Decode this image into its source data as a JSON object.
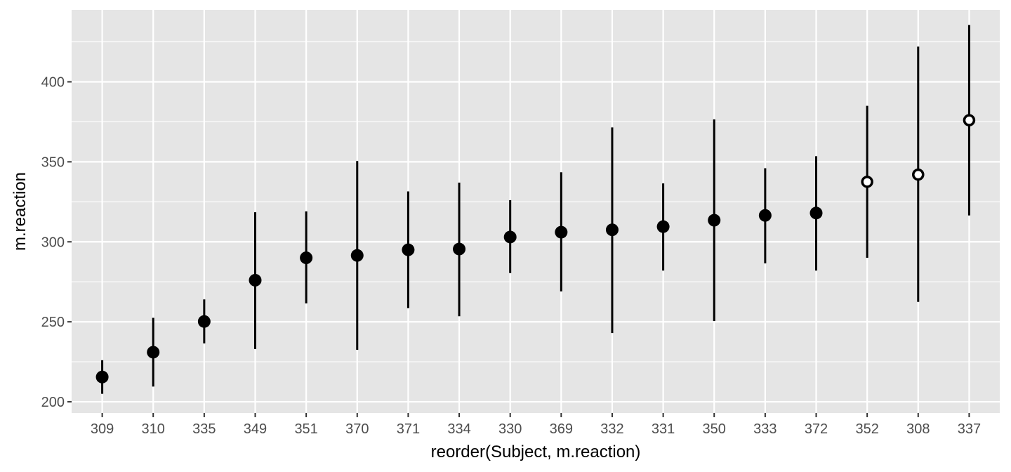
{
  "chart_data": {
    "type": "scatter",
    "geometry": "pointrange",
    "xlabel": "reorder(Subject, m.reaction)",
    "ylabel": "m.reaction",
    "ylim": [
      193,
      445
    ],
    "y_ticks": [
      200,
      250,
      300,
      350,
      400
    ],
    "grid": true,
    "categories": [
      "309",
      "310",
      "335",
      "349",
      "351",
      "370",
      "371",
      "334",
      "330",
      "369",
      "332",
      "331",
      "350",
      "333",
      "372",
      "352",
      "308",
      "337"
    ],
    "points": [
      {
        "subject": "309",
        "mean": 215.5,
        "low": 205,
        "high": 226,
        "hollow": false
      },
      {
        "subject": "310",
        "mean": 231,
        "low": 209.5,
        "high": 252.5,
        "hollow": false
      },
      {
        "subject": "335",
        "mean": 250.2,
        "low": 236.5,
        "high": 264,
        "hollow": false
      },
      {
        "subject": "349",
        "mean": 276,
        "low": 233,
        "high": 318.5,
        "hollow": false
      },
      {
        "subject": "351",
        "mean": 290,
        "low": 261.5,
        "high": 319,
        "hollow": false
      },
      {
        "subject": "370",
        "mean": 291.5,
        "low": 232.5,
        "high": 350.5,
        "hollow": false
      },
      {
        "subject": "371",
        "mean": 295,
        "low": 258.5,
        "high": 331.5,
        "hollow": false
      },
      {
        "subject": "334",
        "mean": 295.5,
        "low": 253.5,
        "high": 337,
        "hollow": false
      },
      {
        "subject": "330",
        "mean": 303,
        "low": 280.5,
        "high": 326,
        "hollow": false
      },
      {
        "subject": "369",
        "mean": 306,
        "low": 269,
        "high": 343.5,
        "hollow": false
      },
      {
        "subject": "332",
        "mean": 307.5,
        "low": 243,
        "high": 371.5,
        "hollow": false
      },
      {
        "subject": "331",
        "mean": 309.5,
        "low": 282,
        "high": 336.5,
        "hollow": false
      },
      {
        "subject": "350",
        "mean": 313.5,
        "low": 250.5,
        "high": 376.5,
        "hollow": false
      },
      {
        "subject": "333",
        "mean": 316.5,
        "low": 286.5,
        "high": 346,
        "hollow": false
      },
      {
        "subject": "372",
        "mean": 318,
        "low": 282,
        "high": 353.5,
        "hollow": false
      },
      {
        "subject": "352",
        "mean": 337.5,
        "low": 290,
        "high": 385,
        "hollow": true
      },
      {
        "subject": "308",
        "mean": 342,
        "low": 262.5,
        "high": 422,
        "hollow": true
      },
      {
        "subject": "337",
        "mean": 376,
        "low": 316.5,
        "high": 435.5,
        "hollow": true
      }
    ],
    "colors": {
      "panel": "#e5e5e5",
      "grid": "#ffffff",
      "point": "#000000",
      "hollow_fill": "#ffffff",
      "tick_label": "#4d4d4d"
    }
  }
}
